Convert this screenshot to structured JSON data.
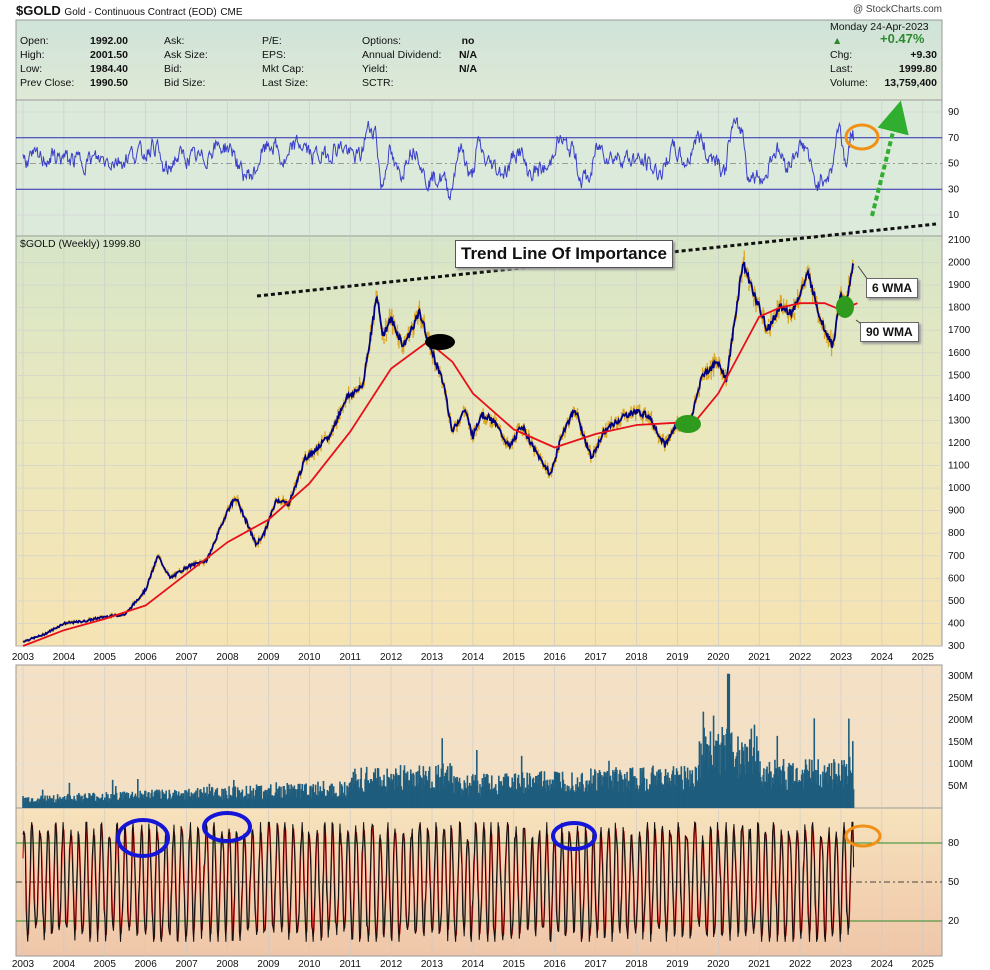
{
  "header": {
    "symbol": "$GOLD",
    "desc": "Gold - Continuous Contract (EOD)",
    "exchange": "CME",
    "watermark": "@ StockCharts.com",
    "date": "Monday  24-Apr-2023",
    "pct": "+0.47%",
    "fields": [
      {
        "l": "Open:",
        "v": "1992.00"
      },
      {
        "l": "High:",
        "v": "2001.50"
      },
      {
        "l": "Low:",
        "v": "1984.40"
      },
      {
        "l": "Prev Close:",
        "v": "1990.50"
      }
    ],
    "fields2": [
      "Ask:",
      "Ask Size:",
      "Bid:",
      "Bid Size:"
    ],
    "fields3": [
      "P/E:",
      "EPS:",
      "Mkt Cap:",
      "Last Size:"
    ],
    "fields4": [
      {
        "l": "Options:",
        "v": "no"
      },
      {
        "l": "Annual Dividend:",
        "v": "N/A"
      },
      {
        "l": "Yield:",
        "v": "N/A"
      },
      {
        "l": "SCTR:",
        "v": ""
      }
    ],
    "right": [
      {
        "l": "Chg:",
        "v": "+9.30"
      },
      {
        "l": "Last:",
        "v": "1999.80"
      },
      {
        "l": "Volume:",
        "v": "13,759,400"
      }
    ]
  },
  "main_label": "$GOLD (Weekly) 1999.80",
  "trend_label": "Trend Line Of Importance",
  "callout_6": "6 WMA",
  "callout_90": "90 WMA",
  "chart_data": {
    "type": "line",
    "title": "$GOLD (Weekly) 1999.80",
    "x_ticks": [
      "2003",
      "2004",
      "2005",
      "2006",
      "2007",
      "2008",
      "2009",
      "2010",
      "2011",
      "2012",
      "2013",
      "2014",
      "2015",
      "2016",
      "2017",
      "2018",
      "2019",
      "2020",
      "2021",
      "2022",
      "2023",
      "2024",
      "2025"
    ],
    "price_ticks": [
      300,
      400,
      500,
      600,
      700,
      800,
      900,
      1000,
      1100,
      1200,
      1300,
      1400,
      1500,
      1600,
      1700,
      1800,
      1900,
      2000,
      2100
    ],
    "rsi_ticks": [
      10,
      30,
      50,
      70,
      90
    ],
    "volume_ticks": [
      "300M",
      "250M",
      "200M",
      "150M",
      "100M",
      "50M"
    ],
    "stoch_ticks": [
      20,
      50,
      80
    ],
    "price_points": [
      [
        2003.0,
        320
      ],
      [
        2003.5,
        350
      ],
      [
        2004.0,
        400
      ],
      [
        2004.5,
        410
      ],
      [
        2005.0,
        430
      ],
      [
        2005.5,
        440
      ],
      [
        2006.0,
        550
      ],
      [
        2006.3,
        700
      ],
      [
        2006.6,
        600
      ],
      [
        2007.0,
        650
      ],
      [
        2007.5,
        680
      ],
      [
        2008.0,
        900
      ],
      [
        2008.2,
        960
      ],
      [
        2008.7,
        750
      ],
      [
        2008.9,
        800
      ],
      [
        2009.2,
        950
      ],
      [
        2009.5,
        930
      ],
      [
        2009.9,
        1130
      ],
      [
        2010.5,
        1230
      ],
      [
        2010.9,
        1400
      ],
      [
        2011.3,
        1450
      ],
      [
        2011.65,
        1850
      ],
      [
        2011.8,
        1680
      ],
      [
        2012.0,
        1750
      ],
      [
        2012.3,
        1630
      ],
      [
        2012.7,
        1780
      ],
      [
        2012.9,
        1660
      ],
      [
        2013.3,
        1450
      ],
      [
        2013.5,
        1250
      ],
      [
        2013.8,
        1350
      ],
      [
        2014.0,
        1230
      ],
      [
        2014.2,
        1330
      ],
      [
        2014.5,
        1300
      ],
      [
        2014.9,
        1180
      ],
      [
        2015.2,
        1280
      ],
      [
        2015.5,
        1170
      ],
      [
        2015.9,
        1060
      ],
      [
        2016.2,
        1250
      ],
      [
        2016.5,
        1350
      ],
      [
        2016.9,
        1130
      ],
      [
        2017.2,
        1250
      ],
      [
        2017.7,
        1320
      ],
      [
        2018.0,
        1340
      ],
      [
        2018.3,
        1320
      ],
      [
        2018.7,
        1190
      ],
      [
        2019.0,
        1290
      ],
      [
        2019.3,
        1280
      ],
      [
        2019.6,
        1500
      ],
      [
        2020.0,
        1560
      ],
      [
        2020.2,
        1480
      ],
      [
        2020.6,
        2000
      ],
      [
        2020.9,
        1850
      ],
      [
        2021.2,
        1700
      ],
      [
        2021.5,
        1800
      ],
      [
        2021.8,
        1780
      ],
      [
        2022.2,
        1950
      ],
      [
        2022.5,
        1750
      ],
      [
        2022.8,
        1630
      ],
      [
        2023.0,
        1860
      ],
      [
        2023.15,
        1830
      ],
      [
        2023.3,
        1990
      ]
    ],
    "wma90_points": [
      [
        2003.0,
        300
      ],
      [
        2004.0,
        370
      ],
      [
        2005.0,
        420
      ],
      [
        2006.0,
        480
      ],
      [
        2007.0,
        620
      ],
      [
        2008.0,
        760
      ],
      [
        2009.0,
        860
      ],
      [
        2010.0,
        1020
      ],
      [
        2011.0,
        1250
      ],
      [
        2012.0,
        1530
      ],
      [
        2012.9,
        1650
      ],
      [
        2013.5,
        1560
      ],
      [
        2014.0,
        1420
      ],
      [
        2015.0,
        1260
      ],
      [
        2016.0,
        1180
      ],
      [
        2017.0,
        1240
      ],
      [
        2018.0,
        1280
      ],
      [
        2019.0,
        1290
      ],
      [
        2019.5,
        1310
      ],
      [
        2020.0,
        1420
      ],
      [
        2020.5,
        1590
      ],
      [
        2021.0,
        1760
      ],
      [
        2021.5,
        1800
      ],
      [
        2022.0,
        1820
      ],
      [
        2022.6,
        1820
      ],
      [
        2023.0,
        1790
      ],
      [
        2023.4,
        1820
      ]
    ],
    "annotations": [
      "Trend Line Of Importance",
      "6 WMA",
      "90 WMA"
    ]
  },
  "colors": {
    "price": "#000080",
    "bars": "#daa520",
    "wma": "#e8101a",
    "volume": "#1f5d7e",
    "rsi": "#3a3fc8",
    "circle_blue": "#1515d8",
    "circle_orange": "#f09015",
    "green": "#2f9b1e"
  }
}
